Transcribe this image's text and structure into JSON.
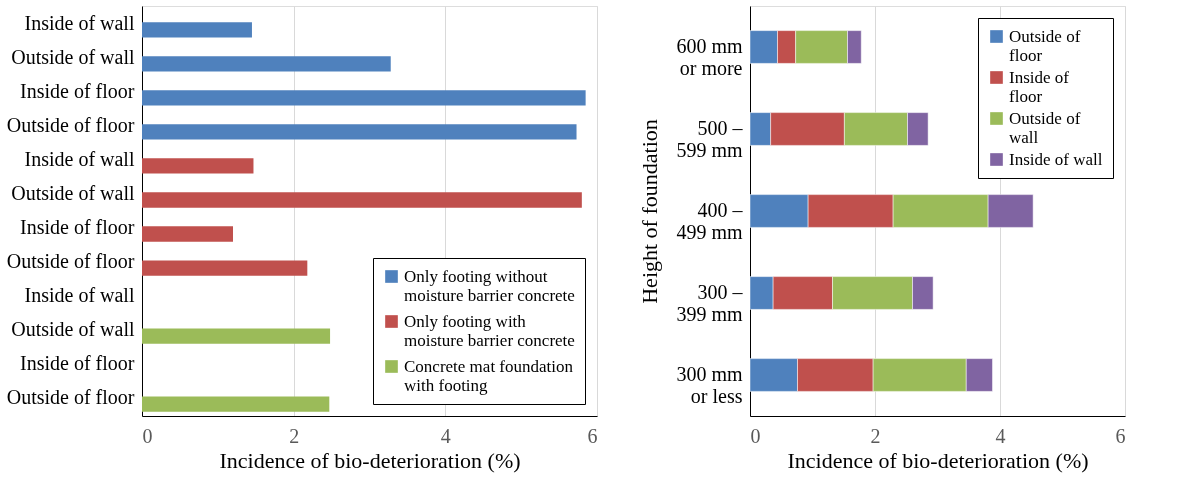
{
  "chart_data": [
    {
      "type": "bar",
      "orientation": "horizontal",
      "categories": [
        "Inside of wall",
        "Outside of wall",
        "Inside of floor",
        "Outside of floor",
        "Inside of wall",
        "Outside of wall",
        "Inside of floor",
        "Outside of floor",
        "Inside of wall",
        "Outside of wall",
        "Inside of floor",
        "Outside of floor"
      ],
      "series": [
        {
          "name": "Only footing without moisture barrier concrete",
          "color": "#4f81bd",
          "values": [
            1.45,
            3.28,
            5.85,
            5.73,
            null,
            null,
            null,
            null,
            null,
            null,
            null,
            null
          ]
        },
        {
          "name": "Only footing with moisture barrier concrete",
          "color": "#c0504d",
          "values": [
            null,
            null,
            null,
            null,
            1.47,
            5.8,
            1.2,
            2.18,
            null,
            null,
            null,
            null
          ]
        },
        {
          "name": "Concrete mat foundation with footing",
          "color": "#9bbb59",
          "values": [
            null,
            null,
            null,
            null,
            null,
            null,
            null,
            null,
            0,
            2.48,
            0,
            2.47
          ]
        }
      ],
      "xlabel": "Incidence of bio-deterioration (%)",
      "xlim": [
        0,
        6
      ],
      "xticks": [
        0,
        2,
        4,
        6
      ],
      "grid": "x",
      "legend": "bottom right"
    },
    {
      "type": "bar",
      "orientation": "horizontal",
      "stacked": true,
      "categories": [
        "600 mm\nor more",
        "500 –\n599 mm",
        "400 –\n499 mm",
        "300 –\n399 mm",
        "300 mm\nor less"
      ],
      "series": [
        {
          "name": "Outside of floor",
          "color": "#4f81bd",
          "values": [
            0.44,
            0.33,
            0.93,
            0.37,
            0.76
          ]
        },
        {
          "name": "Inside of floor",
          "color": "#c0504d",
          "values": [
            0.29,
            1.18,
            1.36,
            0.95,
            1.21
          ]
        },
        {
          "name": "Outside of wall",
          "color": "#9bbb59",
          "values": [
            0.83,
            1.01,
            1.52,
            1.28,
            1.49
          ]
        },
        {
          "name": "Inside of wall",
          "color": "#8064a2",
          "values": [
            0.22,
            0.33,
            0.72,
            0.33,
            0.42
          ]
        }
      ],
      "xlabel": "Incidence of bio-deterioration (%)",
      "ylabel": "Height of foundation",
      "xlim": [
        0,
        6
      ],
      "xticks": [
        0,
        2,
        4,
        6
      ],
      "grid": "x",
      "legend": "top right"
    }
  ]
}
